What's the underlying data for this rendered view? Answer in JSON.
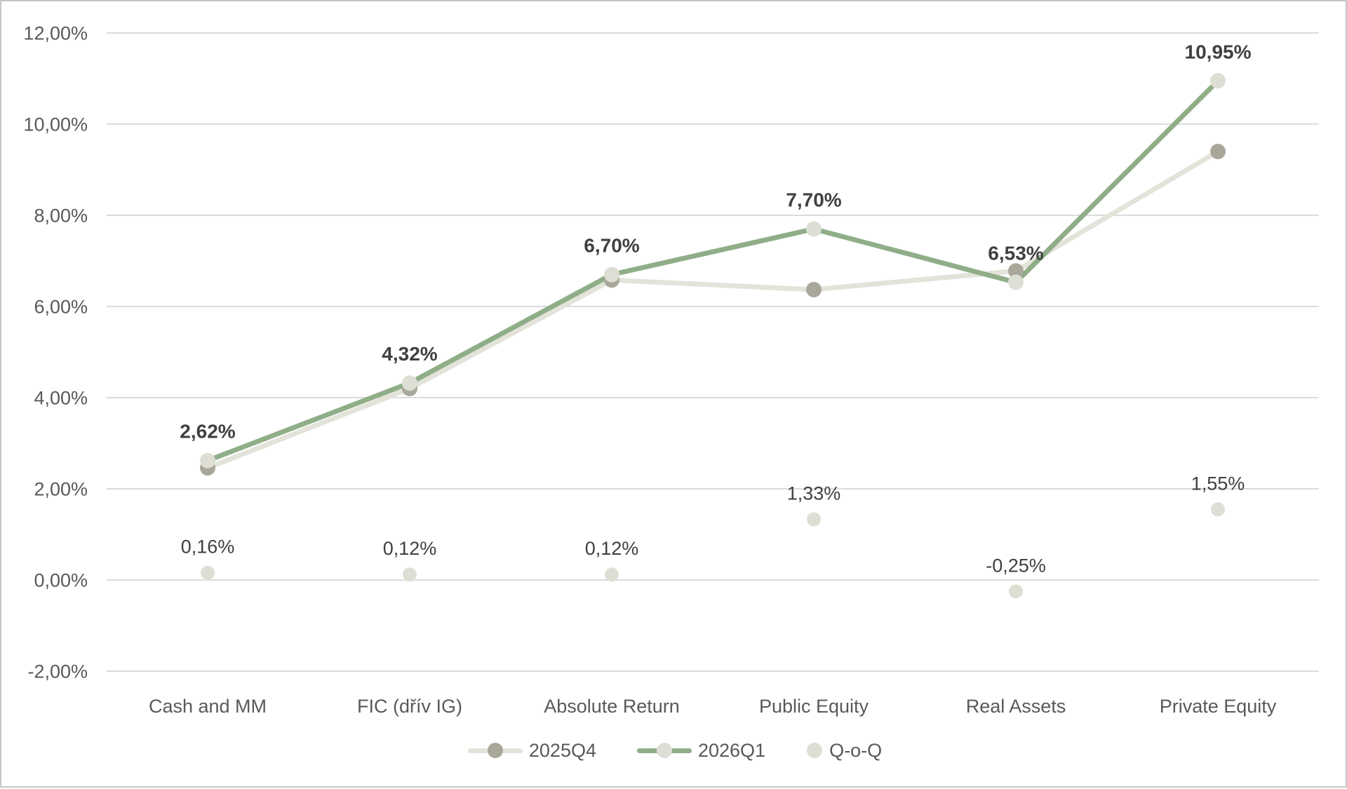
{
  "chart_data": {
    "type": "line",
    "categories": [
      "Cash and MM",
      "FIC (dřív IG)",
      "Absolute Return",
      "Public Equity",
      "Real Assets",
      "Private Equity"
    ],
    "series": [
      {
        "name": "2025Q4",
        "kind": "line",
        "values": [
          2.46,
          4.2,
          6.58,
          6.37,
          6.78,
          9.4
        ],
        "line_color": "#e3e3da",
        "marker_color": "#a9a79a",
        "labels": []
      },
      {
        "name": "2026Q1",
        "kind": "line",
        "values": [
          2.62,
          4.32,
          6.7,
          7.7,
          6.53,
          10.95
        ],
        "line_color": "#8fae88",
        "marker_color": "#dedfd4",
        "labels": [
          "2,62%",
          "4,32%",
          "6,70%",
          "7,70%",
          "6,53%",
          "10,95%"
        ],
        "label_style": "bold"
      },
      {
        "name": "Q-o-Q",
        "kind": "scatter",
        "values": [
          0.16,
          0.12,
          0.12,
          1.33,
          -0.25,
          1.55
        ],
        "line_color": "none",
        "marker_color": "#dedfd4",
        "labels": [
          "0,16%",
          "0,12%",
          "0,12%",
          "1,33%",
          "-0,25%",
          "1,55%"
        ],
        "label_style": "regular"
      }
    ],
    "title": "",
    "xlabel": "",
    "ylabel": "",
    "ylim": [
      -2,
      12
    ],
    "ytick_step": 2,
    "ytick_labels": [
      "12,00%",
      "10,00%",
      "8,00%",
      "6,00%",
      "4,00%",
      "2,00%",
      "0,00%",
      "-2,00%"
    ],
    "grid": true,
    "legend_position": "bottom"
  },
  "legend": {
    "items": [
      {
        "label": "2025Q4"
      },
      {
        "label": "2026Q1"
      },
      {
        "label": "Q-o-Q"
      }
    ]
  },
  "colors": {
    "background": "#ffffff",
    "frame_border": "#c6c6c6",
    "gridline": "#dcdcdc",
    "axis_text": "#595959",
    "data_label_text": "#404040",
    "series_2025Q4_line": "#e3e3da",
    "series_2025Q4_marker": "#a9a79a",
    "series_2026Q1_line": "#8fae88",
    "light_marker": "#dedfd4"
  }
}
